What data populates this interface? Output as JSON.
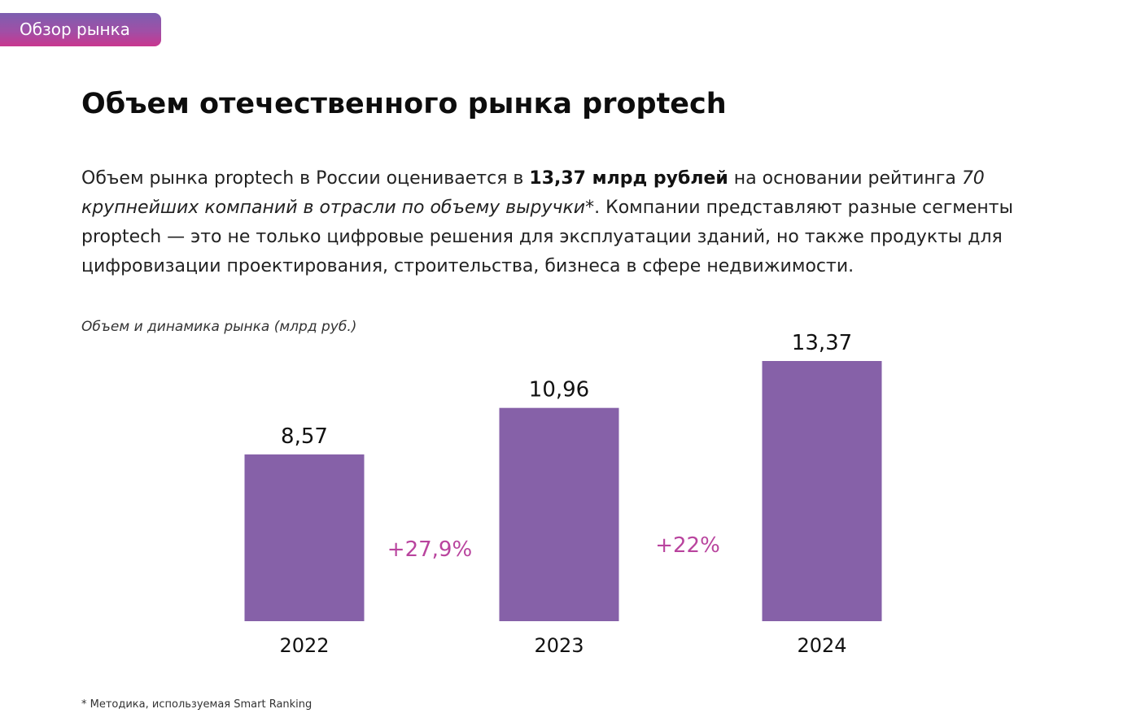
{
  "section_tag": "Обзор рынка",
  "title": "Объем отечественного рынка proptech",
  "paragraph": {
    "part1": "Объем рынка proptech в России оценивается в ",
    "bold": "13,37 млрд рублей",
    "part2": " на основании рейтинга ",
    "italic": "70 крупнейших компаний в отрасли по объему выручки",
    "part3": "*. Компании представляют разные сегменты proptech — это не только цифровые решения для эксплуатации зданий, но также продукты для цифровизации проектирования, строительства, бизнеса в сфере недвижимости."
  },
  "footnote": "* Методика, используемая Smart Ranking",
  "colors": {
    "bar": "#8661a8",
    "growth": "#b9449e",
    "tag_top": "#7c5fb0",
    "tag_bottom": "#c9378f"
  },
  "chart_data": {
    "type": "bar",
    "title": "Объем и динамика рынка (млрд руб.)",
    "xlabel": "",
    "ylabel": "",
    "categories": [
      "2022",
      "2023",
      "2024"
    ],
    "values": [
      8.57,
      10.96,
      13.37
    ],
    "value_labels": [
      "8,57",
      "10,96",
      "13,37"
    ],
    "growth_labels": [
      "+27,9%",
      "+22%"
    ],
    "ylim": [
      0,
      13.37
    ],
    "grid": false,
    "legend": "none"
  }
}
